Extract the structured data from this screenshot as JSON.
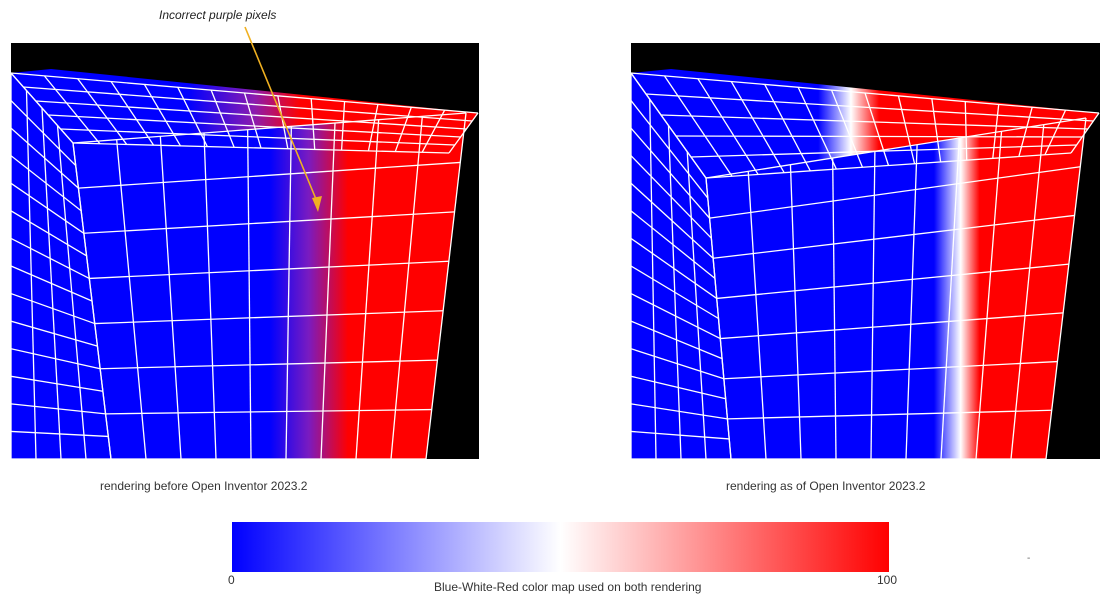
{
  "annotation": {
    "text": "Incorrect purple pixels"
  },
  "panels": {
    "left": {
      "caption": "rendering before Open Inventor 2023.2"
    },
    "right": {
      "caption": "rendering as of Open Inventor 2023.2"
    }
  },
  "colormap": {
    "caption": "Blue-White-Red color map used on both rendering",
    "min_label": "0",
    "max_label": "100",
    "colors": [
      "#0000ff",
      "#ffffff",
      "#ff0000"
    ]
  },
  "colors": {
    "annotation_arrow": "#f0b020",
    "mesh_lines": "#ffffff",
    "background": "#000000"
  },
  "icons": {
    "arrow": "annotation-arrow-icon"
  },
  "stray_mark": "-"
}
